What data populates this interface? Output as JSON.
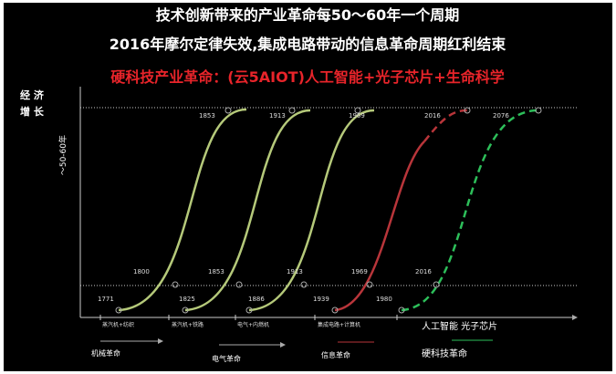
{
  "title": {
    "line1": "技术创新带来的产业革命每50～60年一个周期",
    "line2": "2016年摩尔定律失效,集成电路带动的信息革命周期红利结束",
    "line3": "硬科技产业革命：(云5AIOT)人工智能+光子芯片+生命科学"
  },
  "y_axis": {
    "label_top": "经  济",
    "label_bottom": "增  长",
    "period": "～50-60年"
  },
  "curves": [
    {
      "start": "1771",
      "mid": "1800",
      "peak": "1853",
      "tech": "蒸汽机+纺织"
    },
    {
      "start": "1825",
      "mid": "1853",
      "peak": "1913",
      "tech": "蒸汽机+铁路"
    },
    {
      "start": "1886",
      "mid": "1913",
      "peak": "1969",
      "tech": "电气+内燃机"
    },
    {
      "start": "1939",
      "mid": "1969",
      "peak": "2016",
      "tech": "集成电路+计算机"
    },
    {
      "start": "1980",
      "mid": "2016",
      "peak": "2076",
      "tech": "人工智能 光子芯片"
    }
  ],
  "eras": [
    "机械革命",
    "电气革命",
    "信息革命",
    "硬科技革命"
  ]
}
